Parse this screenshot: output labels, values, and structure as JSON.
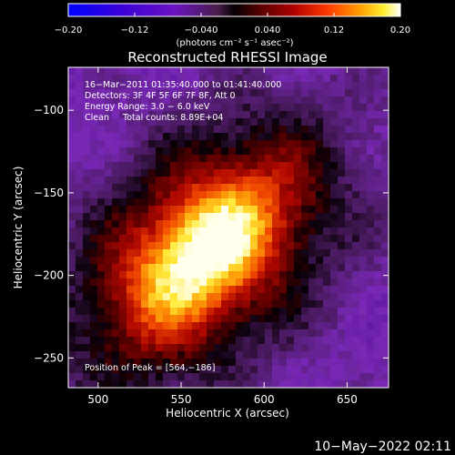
{
  "chart_data": {
    "type": "heatmap",
    "title": "Reconstructed RHESSI Image",
    "xlabel": "Heliocentric X (arcsec)",
    "ylabel": "Heliocentric Y (arcsec)",
    "xlim": [
      482,
      675
    ],
    "ylim": [
      -268,
      -74
    ],
    "x_ticks": [
      {
        "value": 500,
        "label": "500"
      },
      {
        "value": 550,
        "label": "550"
      },
      {
        "value": 600,
        "label": "600"
      },
      {
        "value": 650,
        "label": "650"
      }
    ],
    "y_ticks": [
      {
        "value": -100,
        "label": "−100"
      },
      {
        "value": -150,
        "label": "−150"
      },
      {
        "value": -200,
        "label": "−200"
      },
      {
        "value": -250,
        "label": "−250"
      }
    ],
    "colorbar": {
      "range": [
        -0.2,
        0.2
      ],
      "ticks": [
        {
          "value": -0.2,
          "label": "−0.20"
        },
        {
          "value": -0.12,
          "label": "−0.12"
        },
        {
          "value": -0.04,
          "label": "−0.040"
        },
        {
          "value": 0.04,
          "label": "0.040"
        },
        {
          "value": 0.12,
          "label": "0.12"
        },
        {
          "value": 0.2,
          "label": "0.20"
        }
      ],
      "units": "(photons cm⁻² s⁻¹ asec⁻²)"
    },
    "peak": {
      "x": 564,
      "y": -186
    },
    "annotations": [
      "16−Mar−2011 01:35:40.000 to 01:41:40.000",
      "Detectors: 3F 4F 5F 6F 7F 8F, Att 0",
      "Energy Range: 3.0 − 6.0 keV",
      "Clean     Total counts: 8.89E+04"
    ],
    "peak_label": "Position of Peak = [564,−186]",
    "timestamp": "10−May−2022 02:11"
  }
}
